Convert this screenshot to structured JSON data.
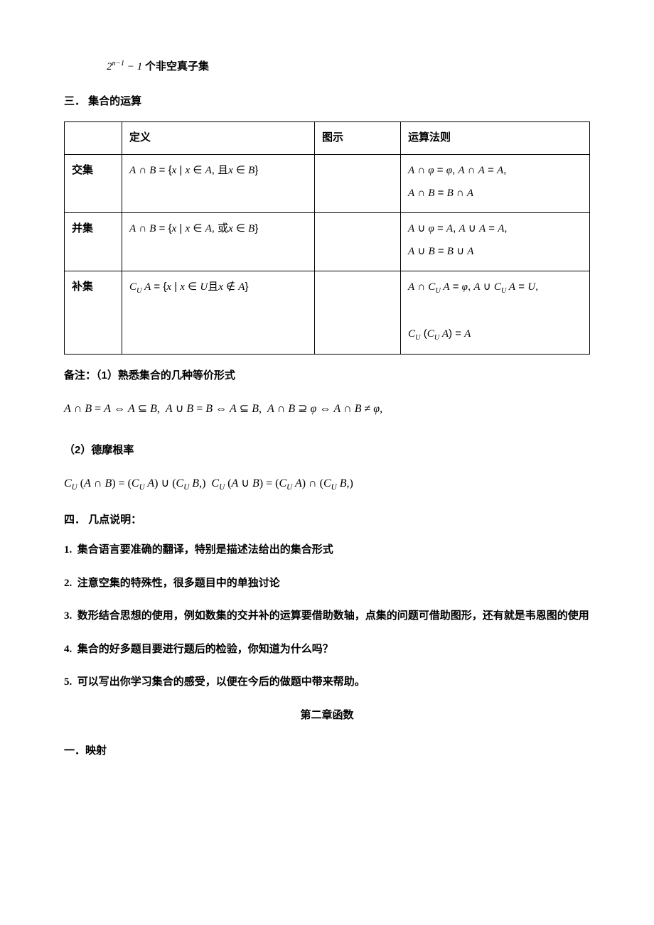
{
  "top_formula": "2<sup class='sup'>n−1</sup> − 1 <span class='bold' style='font-family:Microsoft YaHei;font-style:normal'>个非空真子集</span>",
  "section3": {
    "heading": "三． 集合的运算",
    "headers": [
      "",
      "定义",
      "图示",
      "运算法则"
    ],
    "rows": [
      {
        "name": "交集",
        "def": "<span class='math'>A</span> ∩ <span class='math'>B</span> = {<span class='math'>x</span> | <span class='math'>x</span> ∈ <span class='math'>A</span>, 且<span class='math'>x</span> ∈ <span class='math'>B</span>}",
        "fig": "",
        "laws": [
          "<span class='math'>A</span> ∩ <span class='math'>φ</span> = <span class='math'>φ</span>, <span class='math'>A</span> ∩ <span class='math'>A</span> = <span class='math'>A</span>,",
          "<span class='math'>A</span> ∩ <span class='math'>B</span> = <span class='math'>B</span> ∩ <span class='math'>A</span>"
        ]
      },
      {
        "name": "并集",
        "def": "<span class='math'>A</span> ∩ <span class='math'>B</span> = {<span class='math'>x</span> | <span class='math'>x</span> ∈ <span class='math'>A</span>, 或<span class='math'>x</span> ∈ <span class='math'>B</span>}",
        "fig": "",
        "laws": [
          "<span class='math'>A</span> ∪ <span class='math'>φ</span> = <span class='math'>A</span>, <span class='math'>A</span> ∪ <span class='math'>A</span> = <span class='math'>A</span>,",
          "<span class='math'>A</span> ∪ <span class='math'>B</span> = <span class='math'>B</span> ∪ <span class='math'>A</span>"
        ]
      },
      {
        "name": "补集",
        "def": "<span class='math'>C<span class='sub'>U</span> A</span> = {<span class='math'>x</span> | <span class='math'>x</span> ∈ <span class='math'>U</span>且<span class='math'>x</span> ∉ <span class='math'>A</span>}",
        "fig": "",
        "laws": [
          "<span class='math'>A</span> ∩ <span class='math'>C<span class='sub'>U</span> A</span> = <span class='math'>φ</span>, <span class='math'>A</span> ∪ <span class='math'>C<span class='sub'>U</span> A</span> = <span class='math'>U</span>,",
          "&nbsp;",
          "<span class='math'>C<span class='sub'>U</span></span> (<span class='math'>C<span class='sub'>U</span> A</span>) = <span class='math'>A</span>"
        ]
      }
    ]
  },
  "remark": {
    "heading": "备注：（1）熟悉集合的几种等价形式",
    "formula": "<span class='math'>A</span> ∩ <span class='math'>B</span> = <span class='math'>A</span> ⇔ <span class='math'>A</span> ⊆ <span class='math'>B</span>,&nbsp; <span class='math'>A</span> ∪ <span class='math'>B</span> = <span class='math'>B</span> ⇔ <span class='math'>A</span> ⊆ <span class='math'>B</span>,&nbsp; <span class='math'>A</span> ∩ <span class='math'>B</span> ⊇ <span class='math'>φ</span> ⇔ <span class='math'>A</span> ∩ <span class='math'>B</span> ≠ <span class='math'>φ</span>,"
  },
  "demorgan": {
    "heading": "（2）德摩根率",
    "formula": "<span class='math'>C<span class='sub'>U</span></span> (<span class='math'>A</span> ∩ <span class='math'>B</span>) = (<span class='math'>C<span class='sub'>U</span> A</span>) ∪ (<span class='math'>C<span class='sub'>U</span> B</span>,)&nbsp; <span class='math'>C<span class='sub'>U</span></span> (<span class='math'>A</span> ∪ <span class='math'>B</span>) = (<span class='math'>C<span class='sub'>U</span> A</span>) ∩ (<span class='math'>C<span class='sub'>U</span> B</span>,)"
  },
  "section4": {
    "heading": "四． 几点说明：",
    "items": [
      "集合语言要准确的翻译，特别是描述法给出的集合形式",
      "注意空集的特殊性，很多题目中的单独讨论",
      "数形结合思想的使用，例如数集的交并补的运算要借助数轴，点集的问题可借助图形，还有就是韦恩图的使用",
      "集合的好多题目要进行题后的检验，你知道为什么吗？",
      "可以写出你学习集合的感受，以便在今后的做题中带来帮助。"
    ]
  },
  "chapter2": "第二章函数",
  "mapping": "一．映射"
}
